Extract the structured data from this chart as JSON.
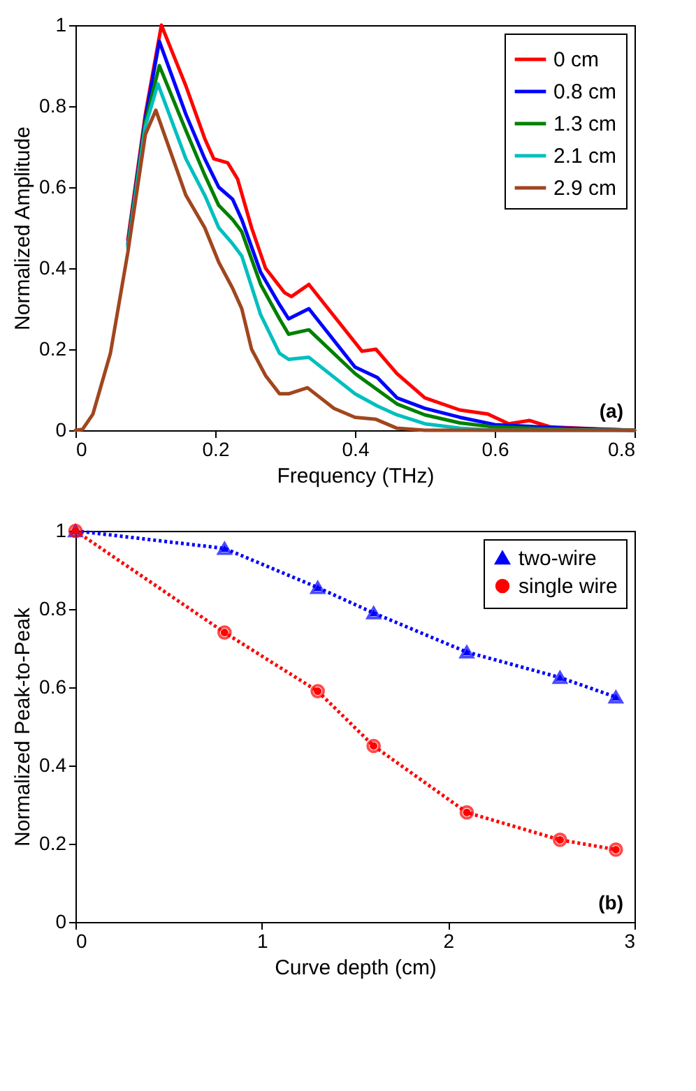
{
  "chart_data": [
    {
      "type": "line",
      "xlabel": "Frequency (THz)",
      "ylabel": "Normalized Amplitude",
      "annotations": [
        "(a)"
      ],
      "xlim": [
        0,
        0.8
      ],
      "xticks": [
        0,
        0.2,
        0.4,
        0.6,
        0.8
      ],
      "ylim": [
        0,
        1
      ],
      "yticks": [
        0,
        0.2,
        0.4,
        0.6,
        0.8,
        1
      ],
      "grid": false,
      "legend": "top right",
      "marker": "none",
      "line_style": "solid",
      "series": [
        {
          "name": "0 cm",
          "color": "#ff0000",
          "x": [
            0.075,
            0.1,
            0.123,
            0.158,
            0.185,
            0.198,
            0.218,
            0.232,
            0.252,
            0.272,
            0.299,
            0.309,
            0.334,
            0.41,
            0.43,
            0.46,
            0.5,
            0.55,
            0.59,
            0.62,
            0.65,
            0.68,
            0.75,
            0.8
          ],
          "values": [
            0.47,
            0.78,
            1.0,
            0.85,
            0.72,
            0.67,
            0.66,
            0.62,
            0.5,
            0.4,
            0.34,
            0.33,
            0.36,
            0.195,
            0.2,
            0.14,
            0.08,
            0.05,
            0.04,
            0.016,
            0.024,
            0.008,
            0.003,
            0
          ]
        },
        {
          "name": "0.8 cm",
          "color": "#0000ff",
          "x": [
            0.075,
            0.1,
            0.12,
            0.158,
            0.185,
            0.205,
            0.225,
            0.238,
            0.265,
            0.292,
            0.305,
            0.334,
            0.4,
            0.432,
            0.46,
            0.5,
            0.55,
            0.6,
            0.7,
            0.8
          ],
          "values": [
            0.46,
            0.77,
            0.96,
            0.78,
            0.67,
            0.6,
            0.57,
            0.52,
            0.39,
            0.31,
            0.275,
            0.3,
            0.156,
            0.13,
            0.08,
            0.054,
            0.032,
            0.014,
            0.005,
            0
          ]
        },
        {
          "name": "1.3 cm",
          "color": "#008000",
          "x": [
            0.075,
            0.1,
            0.12,
            0.158,
            0.185,
            0.205,
            0.225,
            0.238,
            0.265,
            0.292,
            0.305,
            0.334,
            0.4,
            0.432,
            0.46,
            0.5,
            0.55,
            0.6,
            0.7,
            0.8
          ],
          "values": [
            0.455,
            0.76,
            0.9,
            0.74,
            0.63,
            0.555,
            0.52,
            0.49,
            0.36,
            0.275,
            0.237,
            0.248,
            0.14,
            0.1,
            0.065,
            0.038,
            0.018,
            0.008,
            0.002,
            0
          ]
        },
        {
          "name": "2.1 cm",
          "color": "#00bfbf",
          "x": [
            0.075,
            0.1,
            0.118,
            0.158,
            0.185,
            0.205,
            0.225,
            0.238,
            0.265,
            0.292,
            0.305,
            0.334,
            0.4,
            0.432,
            0.46,
            0.5,
            0.55,
            0.6,
            0.8
          ],
          "values": [
            0.45,
            0.75,
            0.855,
            0.67,
            0.58,
            0.5,
            0.46,
            0.43,
            0.285,
            0.19,
            0.175,
            0.18,
            0.09,
            0.06,
            0.038,
            0.016,
            0.005,
            0,
            0
          ]
        },
        {
          "name": "2.9 cm",
          "color": "#a0461e",
          "x": [
            0,
            0.01,
            0.025,
            0.05,
            0.075,
            0.1,
            0.115,
            0.158,
            0.185,
            0.205,
            0.225,
            0.238,
            0.252,
            0.272,
            0.292,
            0.305,
            0.332,
            0.37,
            0.4,
            0.43,
            0.46,
            0.5,
            0.8
          ],
          "values": [
            0,
            0.002,
            0.04,
            0.19,
            0.44,
            0.73,
            0.79,
            0.58,
            0.5,
            0.415,
            0.35,
            0.3,
            0.2,
            0.135,
            0.09,
            0.09,
            0.105,
            0.054,
            0.032,
            0.027,
            0.005,
            0,
            0
          ]
        }
      ]
    },
    {
      "type": "line",
      "xlabel": "Curve depth (cm)",
      "ylabel": "Normalized Peak-to-Peak",
      "annotations": [
        "(b)"
      ],
      "xlim": [
        0,
        3
      ],
      "xticks": [
        0,
        1,
        2,
        3
      ],
      "ylim": [
        0,
        1
      ],
      "yticks": [
        0,
        0.2,
        0.4,
        0.6,
        0.8,
        1
      ],
      "grid": false,
      "legend": "top right",
      "line_style": "dotted",
      "series": [
        {
          "name": "two-wire",
          "color": "#0000ff",
          "marker": "triangle",
          "x": [
            0,
            0.8,
            1.3,
            1.6,
            2.1,
            2.6,
            2.9
          ],
          "values": [
            1,
            0.955,
            0.855,
            0.79,
            0.69,
            0.625,
            0.575
          ]
        },
        {
          "name": "single wire",
          "color": "#ff0000",
          "marker": "circle",
          "x": [
            0,
            0.8,
            1.3,
            1.6,
            2.1,
            2.6,
            2.9
          ],
          "values": [
            1,
            0.74,
            0.59,
            0.45,
            0.28,
            0.21,
            0.185
          ]
        }
      ]
    }
  ]
}
